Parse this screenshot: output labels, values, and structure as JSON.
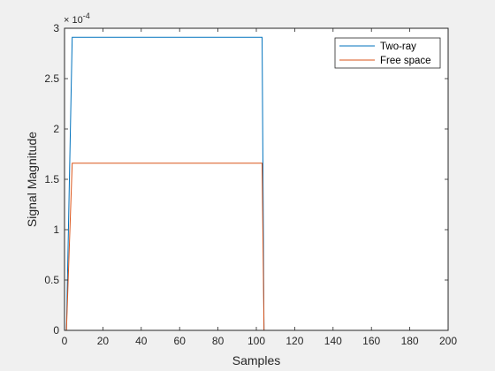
{
  "chart_data": {
    "type": "line",
    "xlabel": "Samples",
    "ylabel": "Signal Magnitude",
    "y_exponent": "× 10",
    "y_exponent_power": "-4",
    "xlim": [
      0,
      200
    ],
    "ylim": [
      0,
      3
    ],
    "xticks": [
      "0",
      "20",
      "40",
      "60",
      "80",
      "100",
      "120",
      "140",
      "160",
      "180",
      "200"
    ],
    "yticks": [
      "0",
      "0.5",
      "1",
      "1.5",
      "2",
      "2.5",
      "3"
    ],
    "legend_position": "top-right",
    "grid": false,
    "series": [
      {
        "name": "Two-ray",
        "color": "#0072BD",
        "x": [
          1,
          4,
          103,
          104,
          200
        ],
        "y": [
          0,
          2.91,
          2.91,
          0,
          0
        ]
      },
      {
        "name": "Free space",
        "color": "#D95319",
        "x": [
          1,
          4,
          103,
          104,
          200
        ],
        "y": [
          0,
          1.66,
          1.66,
          0,
          0
        ]
      }
    ]
  }
}
